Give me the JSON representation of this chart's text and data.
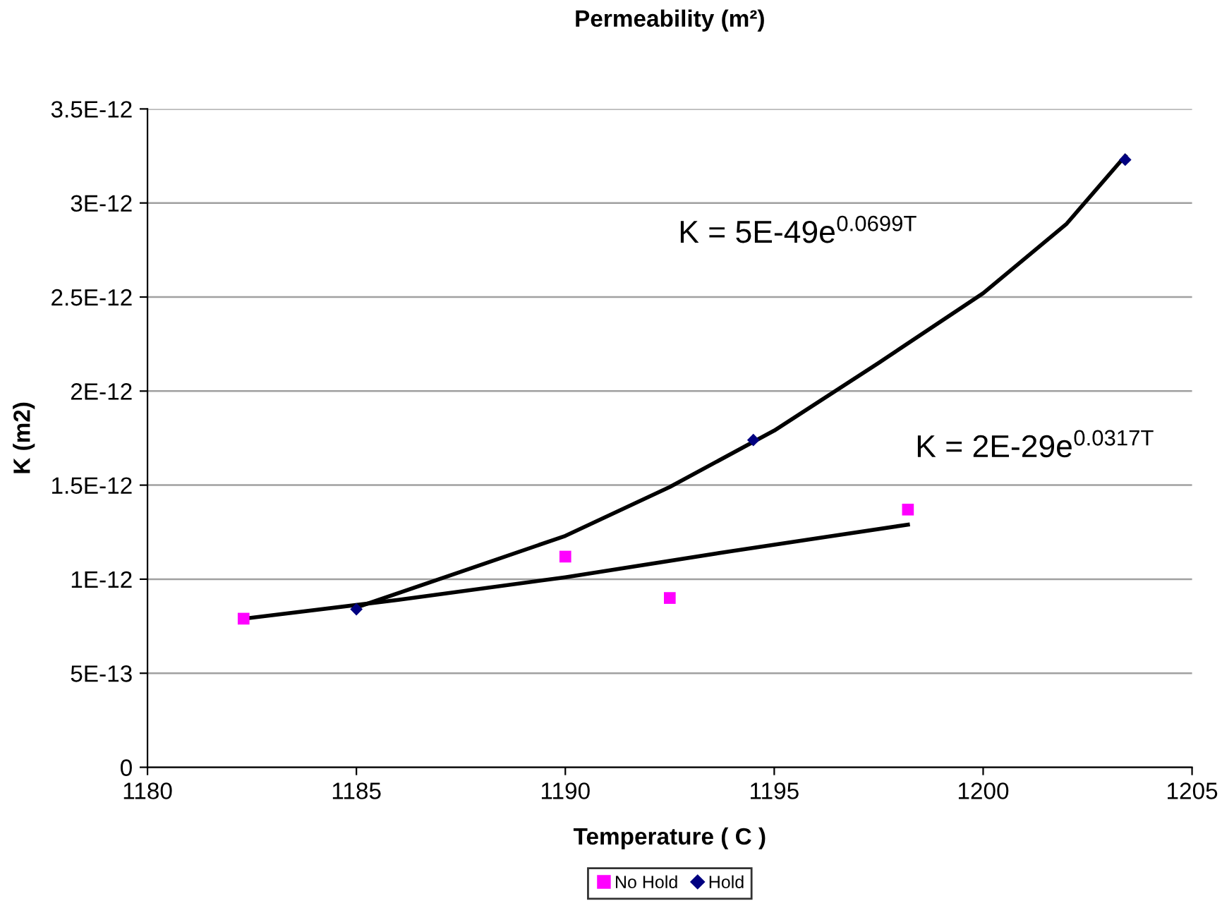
{
  "chart_data": {
    "type": "scatter",
    "title": "Permeability (m²)",
    "xlabel": "Temperature ( C )",
    "ylabel": "K (m2)",
    "xlim": [
      1180,
      1205
    ],
    "xticks": [
      1180,
      1185,
      1190,
      1195,
      1200,
      1205
    ],
    "ylim": [
      0,
      3.5e-12
    ],
    "yticks": [
      {
        "value": 0,
        "label": "0"
      },
      {
        "value": 5e-13,
        "label": "5E-13"
      },
      {
        "value": 1e-12,
        "label": "1E-12"
      },
      {
        "value": 1.5e-12,
        "label": "1.5E-12"
      },
      {
        "value": 2e-12,
        "label": "2E-12"
      },
      {
        "value": 2.5e-12,
        "label": "2.5E-12"
      },
      {
        "value": 3e-12,
        "label": "3E-12"
      },
      {
        "value": 3.5e-12,
        "label": "3.5E-12"
      }
    ],
    "grid": "y",
    "legend": "bottom",
    "series": [
      {
        "name": "No Hold",
        "marker": "square",
        "color": "#ff00ff",
        "x": [
          1182.3,
          1190.0,
          1192.5,
          1198.2
        ],
        "values": [
          7.9e-13,
          1.12e-12,
          9e-13,
          1.37e-12
        ]
      },
      {
        "name": "Hold",
        "marker": "diamond",
        "color": "#000080",
        "x": [
          1185.0,
          1194.5,
          1203.4
        ],
        "values": [
          8.4e-13,
          1.74e-12,
          3.23e-12
        ]
      },
      {
        "type": "line",
        "marker": "none",
        "line_style": "solid",
        "color": "#000000",
        "x": [
          1185,
          1187.5,
          1190,
          1192.5,
          1195,
          1197.5,
          1200,
          1202,
          1203.4
        ],
        "values": [
          8.5e-13,
          1.04e-12,
          1.23e-12,
          1.49e-12,
          1.79e-12,
          2.15e-12,
          2.52e-12,
          2.89e-12,
          3.25e-12
        ]
      },
      {
        "type": "line",
        "marker": "none",
        "line_style": "solid",
        "color": "#000000",
        "x": [
          1182.3,
          1186,
          1190,
          1194,
          1198.2
        ],
        "values": [
          7.9e-13,
          8.9e-13,
          1.01e-12,
          1.15e-12,
          1.29e-12
        ]
      }
    ],
    "annotations": [
      "K = 5E-49e$^{0.0699T}$",
      "K = 2E-29e$^{0.0317T}$"
    ]
  }
}
